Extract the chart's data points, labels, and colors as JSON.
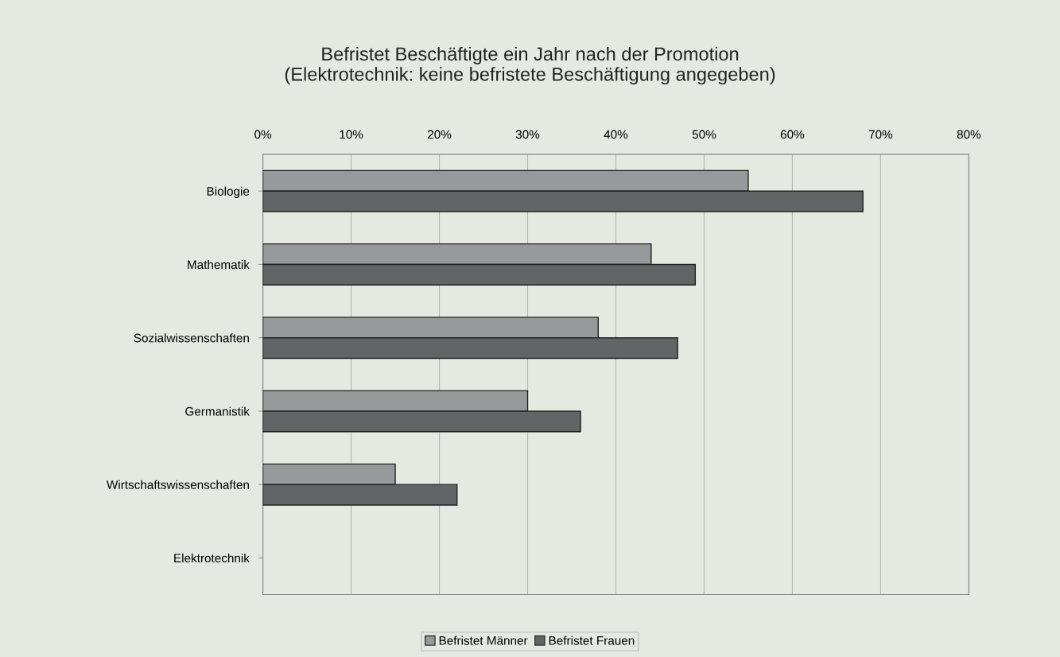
{
  "chart_data": {
    "type": "bar",
    "orientation": "horizontal",
    "title": "Befristet Beschäftigte ein Jahr nach der Promotion\n(Elektrotechnik: keine befristete Beschäftigung angegeben)",
    "categories": [
      "Biologie",
      "Mathematik",
      "Sozialwissenschaften",
      "Germanistik",
      "Wirtschaftswissenschaften",
      "Elektrotechnik"
    ],
    "series": [
      {
        "name": "Befristet Männer",
        "color": "#979a9a",
        "values": [
          55,
          44,
          38,
          30,
          15,
          null
        ]
      },
      {
        "name": "Befristet Frauen",
        "color": "#636466",
        "values": [
          68,
          49,
          47,
          36,
          22,
          null
        ]
      }
    ],
    "xlim": [
      0,
      80
    ],
    "xticks": [
      {
        "value": 0,
        "label": "0%"
      },
      {
        "value": 10,
        "label": "10%"
      },
      {
        "value": 20,
        "label": "20%"
      },
      {
        "value": 30,
        "label": "30%"
      },
      {
        "value": 40,
        "label": "40%"
      },
      {
        "value": 50,
        "label": "50%"
      },
      {
        "value": 60,
        "label": "60%"
      },
      {
        "value": 70,
        "label": "70%"
      },
      {
        "value": 80,
        "label": "80%"
      }
    ],
    "grid": "x",
    "legend": "bottom"
  }
}
